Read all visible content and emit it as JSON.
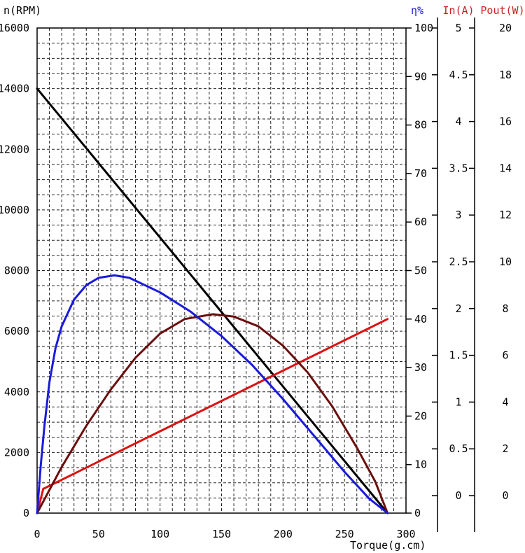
{
  "chart_data": {
    "type": "line",
    "x": {
      "label": "Torque(g.cm)",
      "range": [
        0,
        300
      ],
      "ticks": [
        0,
        50,
        100,
        150,
        200,
        250,
        300
      ]
    },
    "axes": {
      "speed": {
        "label": "n(RPM)",
        "range": [
          0,
          16000
        ],
        "ticks": [
          0,
          2000,
          4000,
          6000,
          8000,
          10000,
          12000,
          14000,
          16000
        ],
        "color": "#000000"
      },
      "efficiency": {
        "label": "η%",
        "range": [
          0,
          100
        ],
        "ticks": [
          0,
          10,
          20,
          30,
          40,
          50,
          60,
          70,
          80,
          90,
          100
        ],
        "color": "#2222cc"
      },
      "current": {
        "label": "In(A)",
        "range": [
          0,
          5
        ],
        "ticks": [
          "0",
          "0.5",
          "1",
          "1.5",
          "2",
          "2.5",
          "3",
          "3.5",
          "4",
          "4.5",
          "5"
        ],
        "color": "#cc2222"
      },
      "power": {
        "label": "Pout(W)",
        "range": [
          0,
          20
        ],
        "ticks": [
          0,
          2,
          4,
          6,
          8,
          10,
          12,
          14,
          16,
          18,
          20
        ],
        "color": "#cc2222"
      }
    },
    "grid": true,
    "series": [
      {
        "axis": "speed",
        "color": "#000000",
        "points": [
          [
            0,
            14000
          ],
          [
            285,
            0
          ]
        ]
      },
      {
        "axis": "current",
        "color": "#dd1111",
        "points": [
          [
            0,
            0
          ],
          [
            5,
            0.25
          ],
          [
            285,
            2
          ]
        ]
      },
      {
        "axis": "power",
        "color": "#6b0f0f",
        "points": [
          [
            0,
            0
          ],
          [
            20,
            1.9
          ],
          [
            40,
            3.6
          ],
          [
            60,
            5.1
          ],
          [
            80,
            6.4
          ],
          [
            100,
            7.4
          ],
          [
            120,
            8.0
          ],
          [
            143,
            8.2
          ],
          [
            160,
            8.1
          ],
          [
            180,
            7.7
          ],
          [
            200,
            6.9
          ],
          [
            220,
            5.8
          ],
          [
            240,
            4.4
          ],
          [
            260,
            2.7
          ],
          [
            275,
            1.3
          ],
          [
            285,
            0
          ]
        ]
      },
      {
        "axis": "efficiency",
        "color": "#1a1adc",
        "points": [
          [
            0,
            0
          ],
          [
            3,
            10
          ],
          [
            6,
            18
          ],
          [
            10,
            27
          ],
          [
            15,
            34
          ],
          [
            20,
            38.5
          ],
          [
            30,
            44
          ],
          [
            40,
            47
          ],
          [
            50,
            48.5
          ],
          [
            63,
            49
          ],
          [
            75,
            48.5
          ],
          [
            100,
            45.5
          ],
          [
            125,
            41.5
          ],
          [
            150,
            36.5
          ],
          [
            175,
            30.5
          ],
          [
            200,
            23.5
          ],
          [
            225,
            16
          ],
          [
            250,
            8.5
          ],
          [
            270,
            3
          ],
          [
            285,
            0
          ]
        ]
      }
    ]
  }
}
